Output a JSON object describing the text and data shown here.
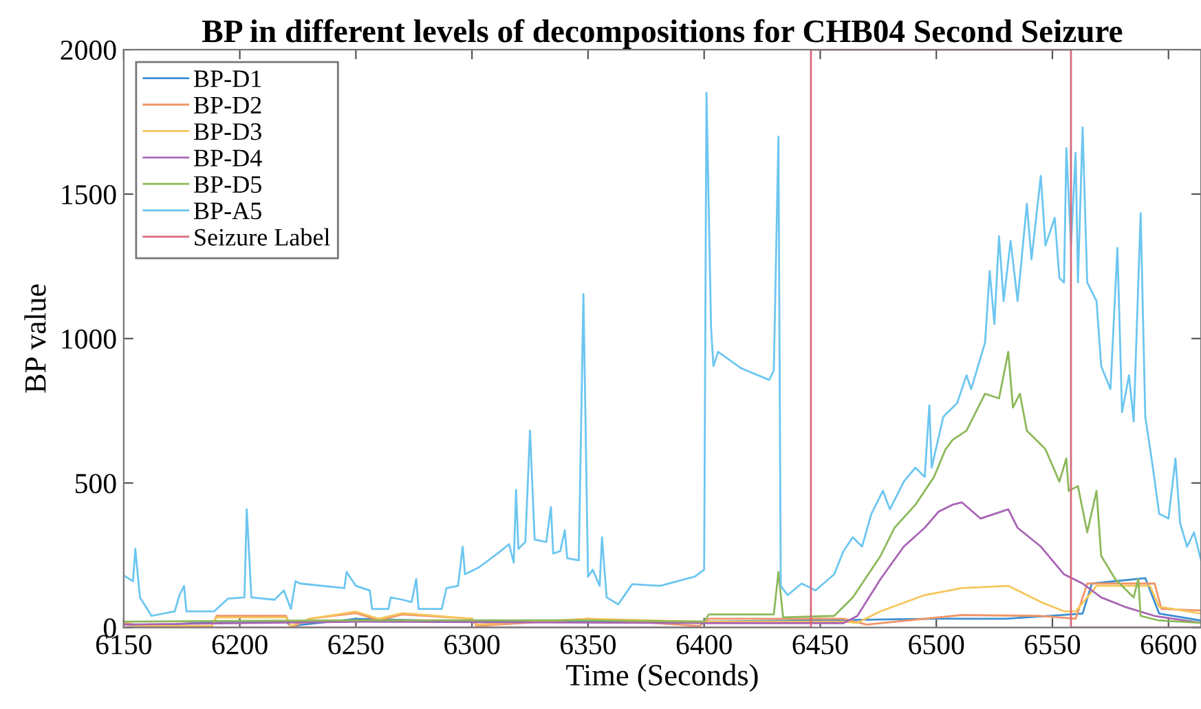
{
  "chart_data": {
    "type": "line",
    "title": "BP in different levels of decompositions for CHB04 Second Seizure",
    "xlabel": "Time (Seconds)",
    "ylabel": "BP value",
    "xlim": [
      6150,
      6614
    ],
    "ylim": [
      0,
      2000
    ],
    "xticks": [
      6150,
      6200,
      6250,
      6300,
      6350,
      6400,
      6450,
      6500,
      6550,
      6600
    ],
    "yticks": [
      0,
      500,
      1000,
      1500,
      2000
    ],
    "grid": false,
    "legend": "top left",
    "marker": "none",
    "line_style": "solid",
    "series": [
      {
        "name": "BP-D1",
        "color": "#3d8fd1",
        "x": [
          6150,
          6160,
          6190,
          6220,
          6222,
          6250,
          6300,
          6350,
          6400,
          6500,
          6530,
          6563,
          6567,
          6590,
          6596,
          6614
        ],
        "values": [
          10,
          5,
          20,
          20,
          5,
          30,
          20,
          20,
          20,
          30,
          30,
          48,
          152,
          171,
          48,
          24
        ]
      },
      {
        "name": "BP-D2",
        "color": "#f0956a",
        "x": [
          6150,
          6160,
          6188,
          6190,
          6220,
          6222,
          6230,
          6250,
          6260,
          6270,
          6300,
          6302,
          6350,
          6398,
          6402,
          6460,
          6470,
          6511,
          6545,
          6560,
          6565,
          6594,
          6597,
          6614
        ],
        "values": [
          15,
          5,
          5,
          40,
          40,
          0,
          30,
          50,
          25,
          45,
          30,
          5,
          30,
          5,
          30,
          30,
          10,
          43,
          40,
          30,
          152,
          152,
          64,
          59
        ]
      },
      {
        "name": "BP-D3",
        "color": "#f5c65a",
        "x": [
          6150,
          6160,
          6188,
          6190,
          6220,
          6222,
          6230,
          6250,
          6260,
          6270,
          6300,
          6302,
          6350,
          6400,
          6460,
          6466,
          6476,
          6495,
          6511,
          6531,
          6545,
          6555,
          6560,
          6565,
          6569,
          6592,
          6596,
          6614
        ],
        "values": [
          10,
          5,
          5,
          35,
          35,
          5,
          30,
          55,
          30,
          50,
          30,
          10,
          30,
          20,
          20,
          16,
          56,
          112,
          136,
          144,
          88,
          56,
          56,
          104,
          144,
          144,
          72,
          48
        ]
      },
      {
        "name": "BP-D4",
        "color": "#a864b4",
        "x": [
          6150,
          6250,
          6400,
          6460,
          6466,
          6476,
          6486,
          6495,
          6501,
          6507,
          6511,
          6519,
          6531,
          6535,
          6545,
          6555,
          6563,
          6571,
          6581,
          6594,
          6614
        ],
        "values": [
          10,
          20,
          15,
          15,
          40,
          168,
          280,
          345,
          401,
          425,
          433,
          377,
          409,
          345,
          280,
          184,
          152,
          104,
          72,
          40,
          16
        ]
      },
      {
        "name": "BP-D5",
        "color": "#8db85a",
        "x": [
          6150,
          6250,
          6350,
          6400,
          6402,
          6430,
          6432,
          6434,
          6456,
          6464,
          6476,
          6482,
          6491,
          6499,
          6504,
          6507,
          6513,
          6521,
          6527,
          6531,
          6533,
          6536,
          6539,
          6547,
          6553,
          6556,
          6557,
          6561,
          6565,
          6569,
          6571,
          6577,
          6585,
          6587,
          6588,
          6596,
          6614
        ],
        "values": [
          20,
          25,
          25,
          20,
          45,
          45,
          192,
          35,
          40,
          104,
          248,
          345,
          425,
          521,
          617,
          649,
          681,
          809,
          793,
          954,
          761,
          809,
          681,
          617,
          505,
          585,
          473,
          489,
          329,
          473,
          248,
          168,
          104,
          168,
          40,
          24,
          16
        ]
      },
      {
        "name": "BP-A5",
        "color": "#6cc6f0",
        "x": [
          6150,
          6154,
          6155,
          6157,
          6162,
          6172,
          6174,
          6176,
          6177,
          6189,
          6195,
          6202,
          6203,
          6205,
          6215,
          6219,
          6222,
          6224,
          6226,
          6245,
          6246,
          6250,
          6256,
          6257,
          6264,
          6265,
          6270,
          6274,
          6276,
          6277,
          6287,
          6289,
          6294,
          6296,
          6297,
          6303,
          6311,
          6316,
          6318,
          6319,
          6320,
          6323,
          6325,
          6327,
          6332,
          6334,
          6335,
          6338,
          6340,
          6341,
          6346,
          6348,
          6350,
          6352,
          6355,
          6356,
          6358,
          6363,
          6369,
          6381,
          6396,
          6400,
          6401,
          6403,
          6404,
          6406,
          6416,
          6428,
          6430,
          6432,
          6433,
          6436,
          6442,
          6448,
          6456,
          6460,
          6464,
          6468,
          6472,
          6477,
          6480,
          6486,
          6491,
          6495,
          6497,
          6498,
          6503,
          6509,
          6513,
          6515,
          6521,
          6523,
          6525,
          6527,
          6529,
          6532,
          6535,
          6539,
          6541,
          6545,
          6547,
          6551,
          6553,
          6555,
          6556,
          6558,
          6560,
          6561,
          6563,
          6565,
          6569,
          6571,
          6575,
          6578,
          6580,
          6583,
          6585,
          6588,
          6590,
          6593,
          6596,
          6600,
          6603,
          6605,
          6608,
          6611,
          6614
        ],
        "values": [
          180,
          160,
          272,
          104,
          40,
          56,
          112,
          144,
          56,
          56,
          100,
          104,
          409,
          104,
          96,
          128,
          64,
          160,
          152,
          136,
          192,
          144,
          128,
          64,
          64,
          104,
          96,
          88,
          168,
          64,
          64,
          136,
          144,
          280,
          184,
          208,
          256,
          288,
          224,
          476,
          272,
          296,
          681,
          304,
          296,
          417,
          256,
          264,
          337,
          240,
          232,
          1154,
          176,
          200,
          144,
          312,
          104,
          80,
          150,
          144,
          176,
          200,
          1851,
          1034,
          905,
          954,
          897,
          857,
          889,
          1699,
          144,
          112,
          152,
          128,
          184,
          264,
          312,
          280,
          393,
          473,
          409,
          505,
          553,
          521,
          769,
          553,
          729,
          777,
          873,
          825,
          986,
          1234,
          1050,
          1354,
          1130,
          1338,
          1130,
          1466,
          1274,
          1563,
          1322,
          1418,
          1210,
          1194,
          1659,
          1322,
          1643,
          1194,
          1731,
          1194,
          1130,
          905,
          825,
          1314,
          745,
          873,
          713,
          1434,
          729,
          569,
          393,
          377,
          585,
          361,
          280,
          329,
          232
        ]
      },
      {
        "name": "Seizure Label",
        "color": "#d9687a",
        "x": [
          6150,
          6446,
          6446,
          6558,
          6558,
          6614
        ],
        "values": [
          0,
          0,
          2000,
          2000,
          0,
          0
        ]
      }
    ]
  }
}
